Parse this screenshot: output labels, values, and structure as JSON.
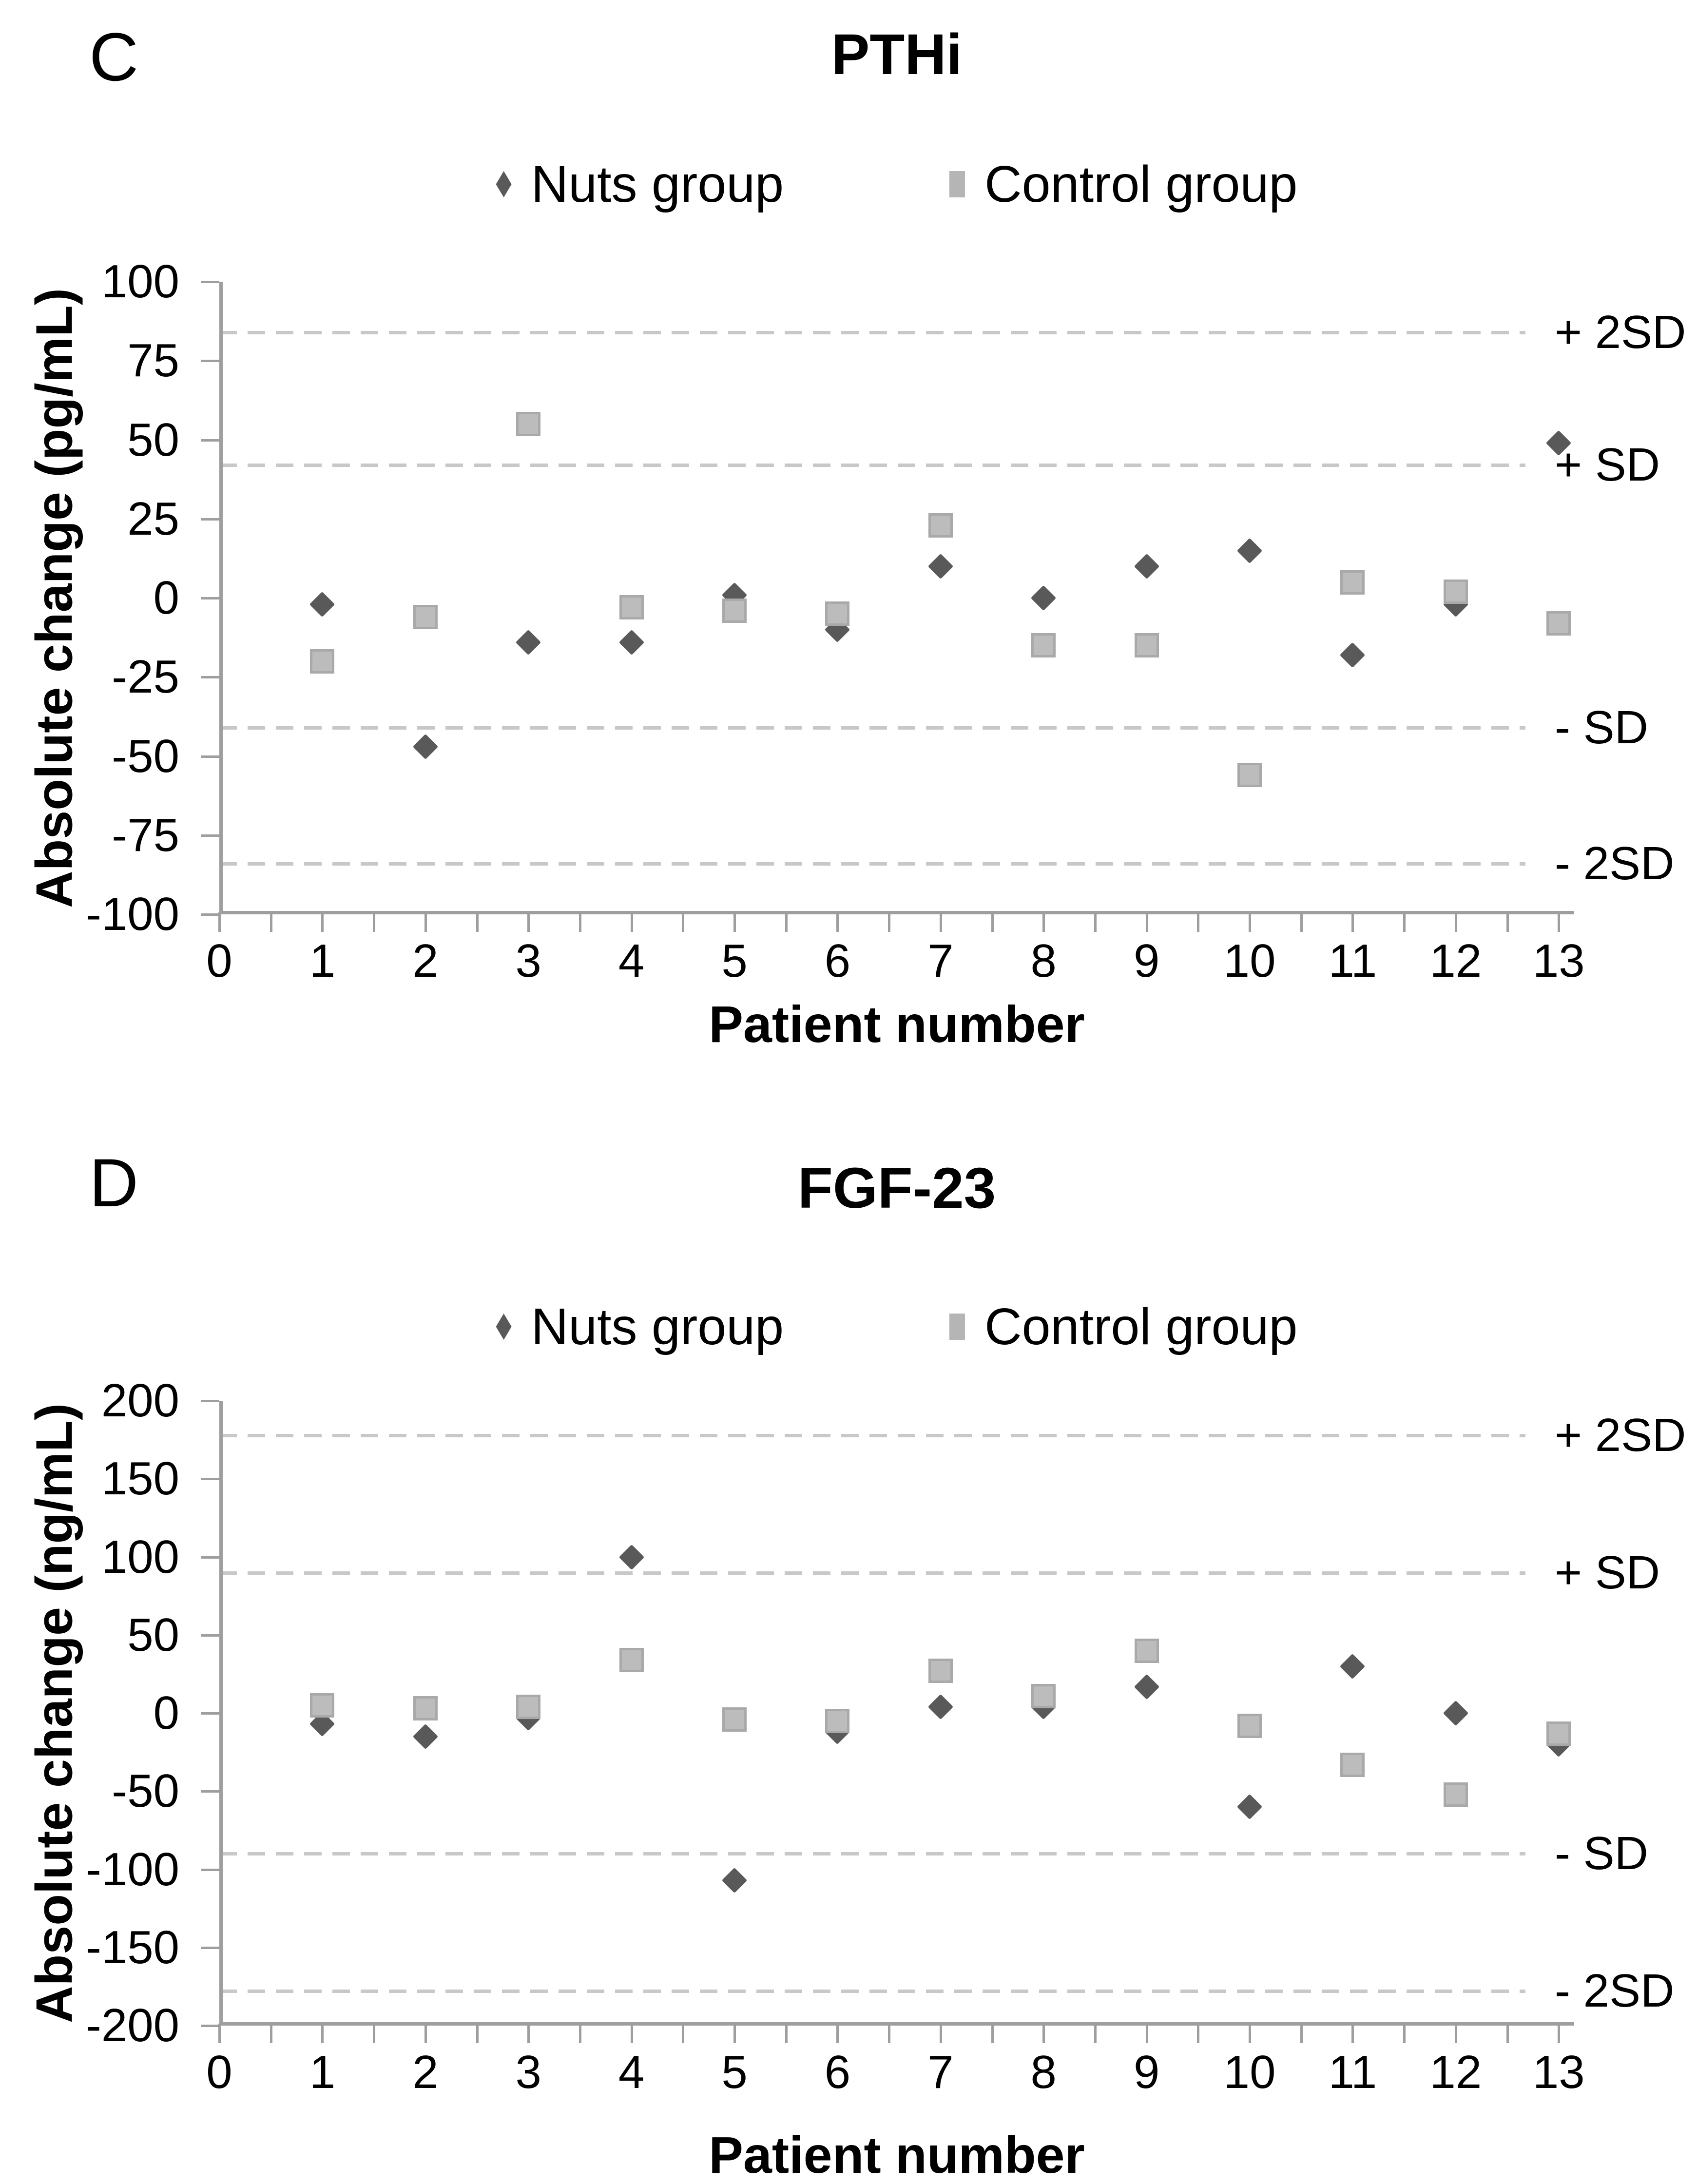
{
  "figure": {
    "background": "#ffffff",
    "panels_count": 2
  },
  "colors": {
    "nuts_marker": "#595959",
    "control_marker": "#b5b5b5",
    "reference_line": "#c8c8c8",
    "axis_line": "#9e9e9e",
    "text": "#000000"
  },
  "chart_data": [
    {
      "type": "scatter",
      "panel": "C",
      "title": "PTHi",
      "xlabel": "Patient number",
      "ylabel": "Absolute change (pg/mL)",
      "legend_position": "top",
      "grid": false,
      "x": [
        1,
        2,
        3,
        4,
        5,
        6,
        7,
        8,
        9,
        10,
        11,
        12,
        13
      ],
      "series": [
        {
          "name": "Nuts group",
          "marker": "diamond",
          "color": "#595959",
          "values": [
            -2,
            -47,
            -14,
            -14,
            1,
            -10,
            10,
            0,
            10,
            15,
            -18,
            -2,
            49
          ]
        },
        {
          "name": "Control group",
          "marker": "square",
          "color": "#b5b5b5",
          "values": [
            -20,
            -6,
            55,
            -3,
            -4,
            -5,
            23,
            -15,
            -15,
            -56,
            5,
            2,
            -8
          ]
        }
      ],
      "ylim": [
        -100,
        100
      ],
      "xlim": [
        0,
        13.15
      ],
      "ytick_values": [
        100,
        75,
        50,
        25,
        0,
        -25,
        -50,
        -75,
        -100
      ],
      "ytick_labels": [
        "100",
        "75",
        "50",
        "25",
        "0",
        "-25",
        "-50",
        "-75",
        "-100"
      ],
      "xtick_values": [
        0,
        1,
        2,
        3,
        4,
        5,
        6,
        7,
        8,
        9,
        10,
        11,
        12,
        13
      ],
      "xtick_labels": [
        "0",
        "1",
        "2",
        "3",
        "4",
        "5",
        "6",
        "7",
        "8",
        "9",
        "10",
        "11",
        "12",
        "13"
      ],
      "xtick_minor_step": 0.5,
      "reference_lines": [
        {
          "label": "+ 2SD",
          "value": 84
        },
        {
          "label": "+ SD",
          "value": 42
        },
        {
          "label": "- SD",
          "value": -41
        },
        {
          "label": "- 2SD",
          "value": -84
        }
      ]
    },
    {
      "type": "scatter",
      "panel": "D",
      "title": "FGF-23",
      "xlabel": "Patient number",
      "ylabel": "Absolute change (ng/mL)",
      "legend_position": "top",
      "grid": false,
      "x": [
        1,
        2,
        3,
        4,
        5,
        6,
        7,
        8,
        9,
        10,
        11,
        12,
        13
      ],
      "series": [
        {
          "name": "Nuts group",
          "marker": "diamond",
          "color": "#595959",
          "values": [
            -7,
            -15,
            -3,
            100,
            -107,
            -12,
            4,
            4,
            17,
            -60,
            30,
            0,
            -20
          ]
        },
        {
          "name": "Control group",
          "marker": "square",
          "color": "#b5b5b5",
          "values": [
            5,
            3,
            4,
            34,
            -4,
            -5,
            27,
            11,
            40,
            -8,
            -33,
            -52,
            -13
          ]
        }
      ],
      "ylim": [
        -200,
        200
      ],
      "xlim": [
        0,
        13.15
      ],
      "ytick_values": [
        200,
        150,
        100,
        50,
        0,
        -50,
        -100,
        -150,
        -200
      ],
      "ytick_labels": [
        "200",
        "150",
        "100",
        "50",
        "0",
        "-50",
        "-100",
        "-150",
        "-200"
      ],
      "xtick_values": [
        0,
        1,
        2,
        3,
        4,
        5,
        6,
        7,
        8,
        9,
        10,
        11,
        12,
        13
      ],
      "xtick_labels": [
        "0",
        "1",
        "2",
        "3",
        "4",
        "5",
        "6",
        "7",
        "8",
        "9",
        "10",
        "11",
        "12",
        "13"
      ],
      "xtick_minor_step": 0.5,
      "reference_lines": [
        {
          "label": "+ 2SD",
          "value": 178
        },
        {
          "label": "+ SD",
          "value": 90
        },
        {
          "label": "- SD",
          "value": -90
        },
        {
          "label": "- 2SD",
          "value": -178
        }
      ]
    }
  ]
}
